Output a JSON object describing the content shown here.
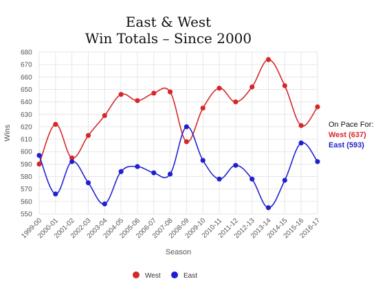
{
  "title_line1": "East & West",
  "title_line2": "Win Totals – Since 2000",
  "on_pace": {
    "heading": "On Pace For:",
    "west": "West (637)",
    "east": "East (593)"
  },
  "colors": {
    "west": "#d62728",
    "east": "#1f1fd1",
    "grid": "#e6e6e6"
  },
  "chart_data": {
    "type": "line",
    "title": "East & West Win Totals – Since 2000",
    "xlabel": "Season",
    "ylabel": "Wins",
    "ylim": [
      550,
      680
    ],
    "yticks": [
      550,
      560,
      570,
      580,
      590,
      600,
      610,
      620,
      630,
      640,
      650,
      660,
      670,
      680
    ],
    "grid": true,
    "legend_position": "bottom",
    "categories": [
      "1999-00",
      "2000-01",
      "2001-02",
      "2002-03",
      "2003-04",
      "2004-05",
      "2005-06",
      "2006-07",
      "2007-08",
      "2008-09",
      "2009-10",
      "2010-11",
      "2011-12",
      "2012-13",
      "2013-14",
      "2014-15",
      "2015-16",
      "2016-17"
    ],
    "series": [
      {
        "name": "West",
        "color": "#d62728",
        "values": [
          590,
          622,
          595,
          613,
          629,
          646,
          641,
          647,
          648,
          608,
          635,
          651,
          640,
          652,
          674,
          653,
          621,
          636
        ]
      },
      {
        "name": "East",
        "color": "#1f1fd1",
        "values": [
          597,
          566,
          592,
          575,
          558,
          584,
          588,
          583,
          582,
          620,
          593,
          578,
          589,
          578,
          555,
          577,
          607,
          592
        ]
      }
    ]
  }
}
